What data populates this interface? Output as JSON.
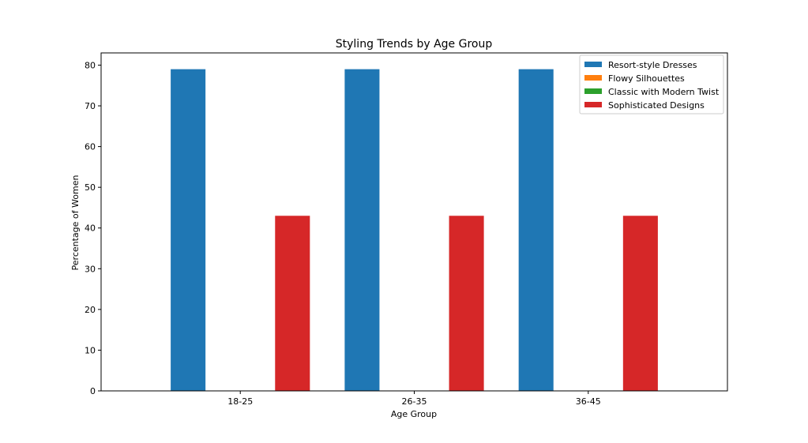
{
  "chart_data": {
    "type": "bar",
    "title": "Styling Trends by Age Group",
    "xlabel": "Age Group",
    "ylabel": "Percentage of Women",
    "categories": [
      "18-25",
      "26-35",
      "36-45"
    ],
    "series": [
      {
        "name": "Resort-style Dresses",
        "color": "#1f77b4",
        "values": [
          79,
          79,
          79
        ]
      },
      {
        "name": "Flowy Silhouettes",
        "color": "#ff7f0e",
        "values": [
          0,
          0,
          0
        ]
      },
      {
        "name": "Classic with Modern Twist",
        "color": "#2ca02c",
        "values": [
          0,
          0,
          0
        ]
      },
      {
        "name": "Sophisticated Designs",
        "color": "#d62728",
        "values": [
          43,
          43,
          43
        ]
      }
    ],
    "ylim": [
      0,
      83
    ],
    "yticks": [
      0,
      10,
      20,
      30,
      40,
      50,
      60,
      70,
      80
    ],
    "grid": false,
    "legend_position": "top-right"
  }
}
